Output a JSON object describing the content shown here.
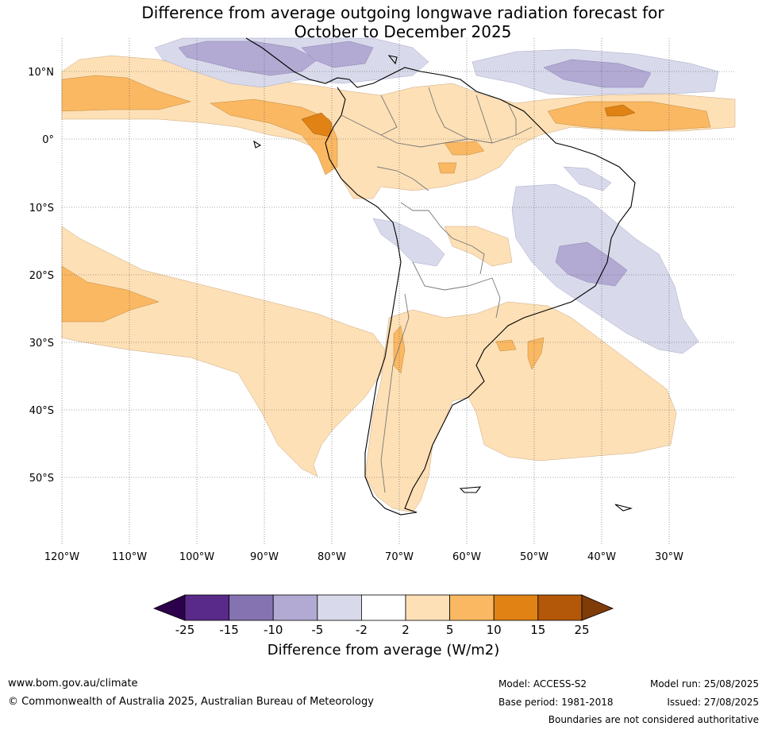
{
  "title_line1": "Difference from average outgoing longwave radiation forecast for",
  "title_line2": "October to December 2025",
  "lat_labels": [
    "10°N",
    "0°",
    "10°S",
    "20°S",
    "30°S",
    "40°S",
    "50°S"
  ],
  "lon_labels": [
    "120°W",
    "110°W",
    "100°W",
    "90°W",
    "80°W",
    "70°W",
    "60°W",
    "50°W",
    "40°W",
    "30°W"
  ],
  "colorbar": {
    "label": "Difference from average (W/m2)",
    "ticks": [
      "-25",
      "-15",
      "-10",
      "-5",
      "-2",
      "2",
      "5",
      "10",
      "15",
      "25"
    ],
    "colors": {
      "under": "#2d004b",
      "b1": "#5a2a8a",
      "b2": "#8473b0",
      "b3": "#b2aad3",
      "b4": "#d8d9ea",
      "neutral": "#ffffff",
      "b6": "#fee0b6",
      "b7": "#fbb862",
      "b8": "#e08214",
      "b9": "#b35808",
      "over": "#7f3b08"
    }
  },
  "footer": {
    "website": "www.bom.gov.au/climate",
    "copyright": "© Commonwealth of Australia 2025, Australian Bureau of Meteorology",
    "model": "Model: ACCESS-S2",
    "base_period": "Base period: 1981-2018",
    "model_run": "Model run: 25/08/2025",
    "issued": "Issued: 27/08/2025",
    "boundaries_note": "Boundaries are not considered authoritative"
  }
}
